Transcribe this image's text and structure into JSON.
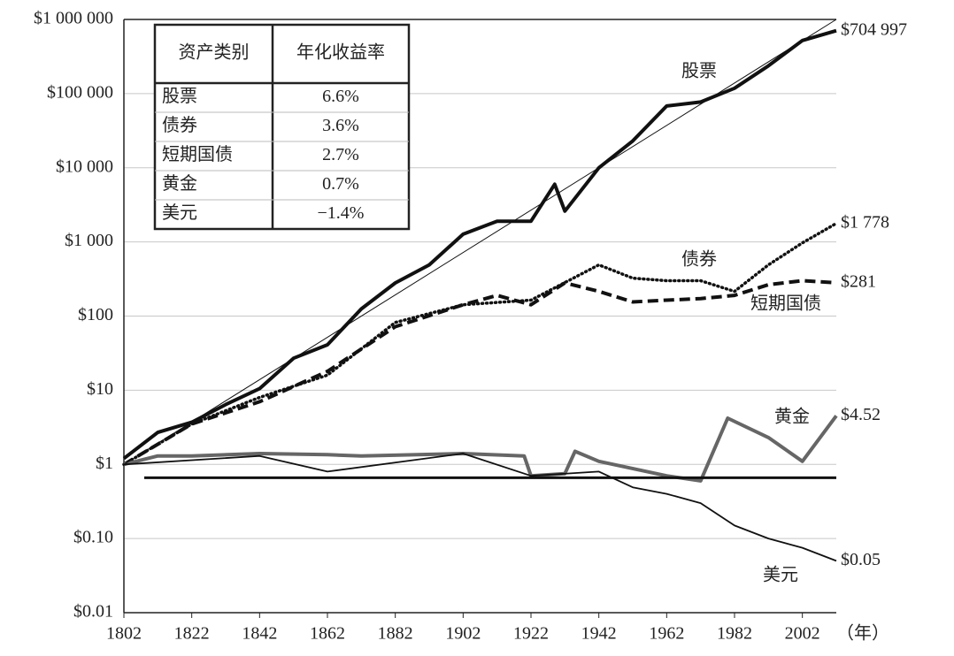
{
  "chart_data": {
    "type": "line",
    "log_y": true,
    "grid": true,
    "x_unit_label": "（年）",
    "xlim": [
      1802,
      2012
    ],
    "xticks": [
      1802,
      1822,
      1842,
      1862,
      1882,
      1902,
      1922,
      1942,
      1962,
      1982,
      2002
    ],
    "ylim": [
      0.01,
      1000000
    ],
    "yticks": [
      {
        "value": 0.01,
        "label": "$0.01"
      },
      {
        "value": 0.1,
        "label": "$0.10"
      },
      {
        "value": 1,
        "label": "$1"
      },
      {
        "value": 10,
        "label": "$10"
      },
      {
        "value": 100,
        "label": "$100"
      },
      {
        "value": 1000,
        "label": "$1 000"
      },
      {
        "value": 10000,
        "label": "$10 000"
      },
      {
        "value": 100000,
        "label": "$100 000"
      },
      {
        "value": 1000000,
        "label": "$1 000 000"
      }
    ],
    "series": [
      {
        "name": "股票",
        "color": "#111111",
        "style": "thick",
        "x": [
          1802,
          1812,
          1822,
          1832,
          1842,
          1852,
          1862,
          1872,
          1882,
          1892,
          1902,
          1912,
          1922,
          1929,
          1932,
          1942,
          1952,
          1962,
          1972,
          1982,
          1992,
          2002,
          2012
        ],
        "values": [
          1.2,
          2.7,
          3.7,
          6.4,
          10.5,
          27,
          41,
          125,
          280,
          490,
          1270,
          1900,
          1900,
          6000,
          2600,
          10000,
          23000,
          68000,
          77000,
          118000,
          237000,
          520000,
          704997
        ],
        "value_labels": [
          null,
          null,
          null,
          null,
          null,
          null,
          null,
          null,
          null,
          null,
          null,
          null,
          null,
          null,
          null,
          null,
          null,
          null,
          null,
          null,
          null,
          null,
          "$704 997"
        ]
      },
      {
        "name": "债券",
        "color": "#111111",
        "style": "dotted",
        "x": [
          1802,
          1822,
          1842,
          1862,
          1882,
          1902,
          1922,
          1942,
          1952,
          1962,
          1972,
          1982,
          1992,
          2002,
          2012
        ],
        "values": [
          1,
          3.5,
          8,
          16,
          82,
          142,
          164,
          490,
          325,
          300,
          300,
          215,
          490,
          970,
          1778
        ],
        "value_labels": [
          null,
          null,
          null,
          null,
          null,
          null,
          null,
          null,
          null,
          null,
          null,
          null,
          null,
          null,
          "$1 778"
        ]
      },
      {
        "name": "短期国债",
        "color": "#111111",
        "style": "dashed",
        "x": [
          1802,
          1822,
          1842,
          1862,
          1882,
          1902,
          1912,
          1922,
          1932,
          1942,
          1952,
          1962,
          1972,
          1982,
          1992,
          2002,
          2012
        ],
        "values": [
          1,
          3.5,
          7,
          18,
          72,
          142,
          190,
          142,
          280,
          215,
          155,
          164,
          172,
          190,
          265,
          300,
          281
        ],
        "value_labels": [
          null,
          null,
          null,
          null,
          null,
          null,
          null,
          null,
          null,
          null,
          null,
          null,
          null,
          null,
          null,
          null,
          "$281"
        ]
      },
      {
        "name": "黄金",
        "color": "#666666",
        "style": "thick",
        "x": [
          1802,
          1812,
          1822,
          1842,
          1862,
          1872,
          1902,
          1920,
          1922,
          1932,
          1935,
          1942,
          1962,
          1972,
          1980,
          1992,
          2002,
          2012
        ],
        "values": [
          1,
          1.3,
          1.3,
          1.4,
          1.35,
          1.3,
          1.4,
          1.3,
          0.7,
          0.75,
          1.5,
          1.1,
          0.7,
          0.6,
          4.2,
          2.3,
          1.1,
          4.52
        ],
        "value_labels": [
          null,
          null,
          null,
          null,
          null,
          null,
          null,
          null,
          null,
          null,
          null,
          null,
          null,
          null,
          null,
          null,
          null,
          "$4.52"
        ]
      },
      {
        "name": "美元",
        "color": "#111111",
        "style": "thin",
        "x": [
          1802,
          1842,
          1862,
          1902,
          1922,
          1942,
          1952,
          1962,
          1972,
          1982,
          1992,
          2002,
          2012
        ],
        "values": [
          1,
          1.3,
          0.8,
          1.4,
          0.7,
          0.8,
          0.49,
          0.4,
          0.3,
          0.15,
          0.1,
          0.075,
          0.05
        ],
        "value_labels": [
          null,
          null,
          null,
          null,
          null,
          null,
          null,
          null,
          null,
          null,
          null,
          null,
          "$0.05"
        ]
      },
      {
        "color": "#111111",
        "style": "hair",
        "x": [
          1802,
          2012
        ],
        "values": [
          1,
          1000000
        ]
      },
      {
        "color": "#111111",
        "style": "flat",
        "x": [
          1808,
          2012
        ],
        "values": [
          0.66,
          0.66
        ]
      }
    ],
    "table": {
      "header": [
        "资产类别",
        "年化收益率"
      ],
      "rows": [
        [
          "股票",
          "6.6%"
        ],
        [
          "债券",
          "3.6%"
        ],
        [
          "短期国债",
          "2.7%"
        ],
        [
          "黄金",
          "0.7%"
        ],
        [
          "美元",
          "−1.4%"
        ]
      ]
    }
  }
}
